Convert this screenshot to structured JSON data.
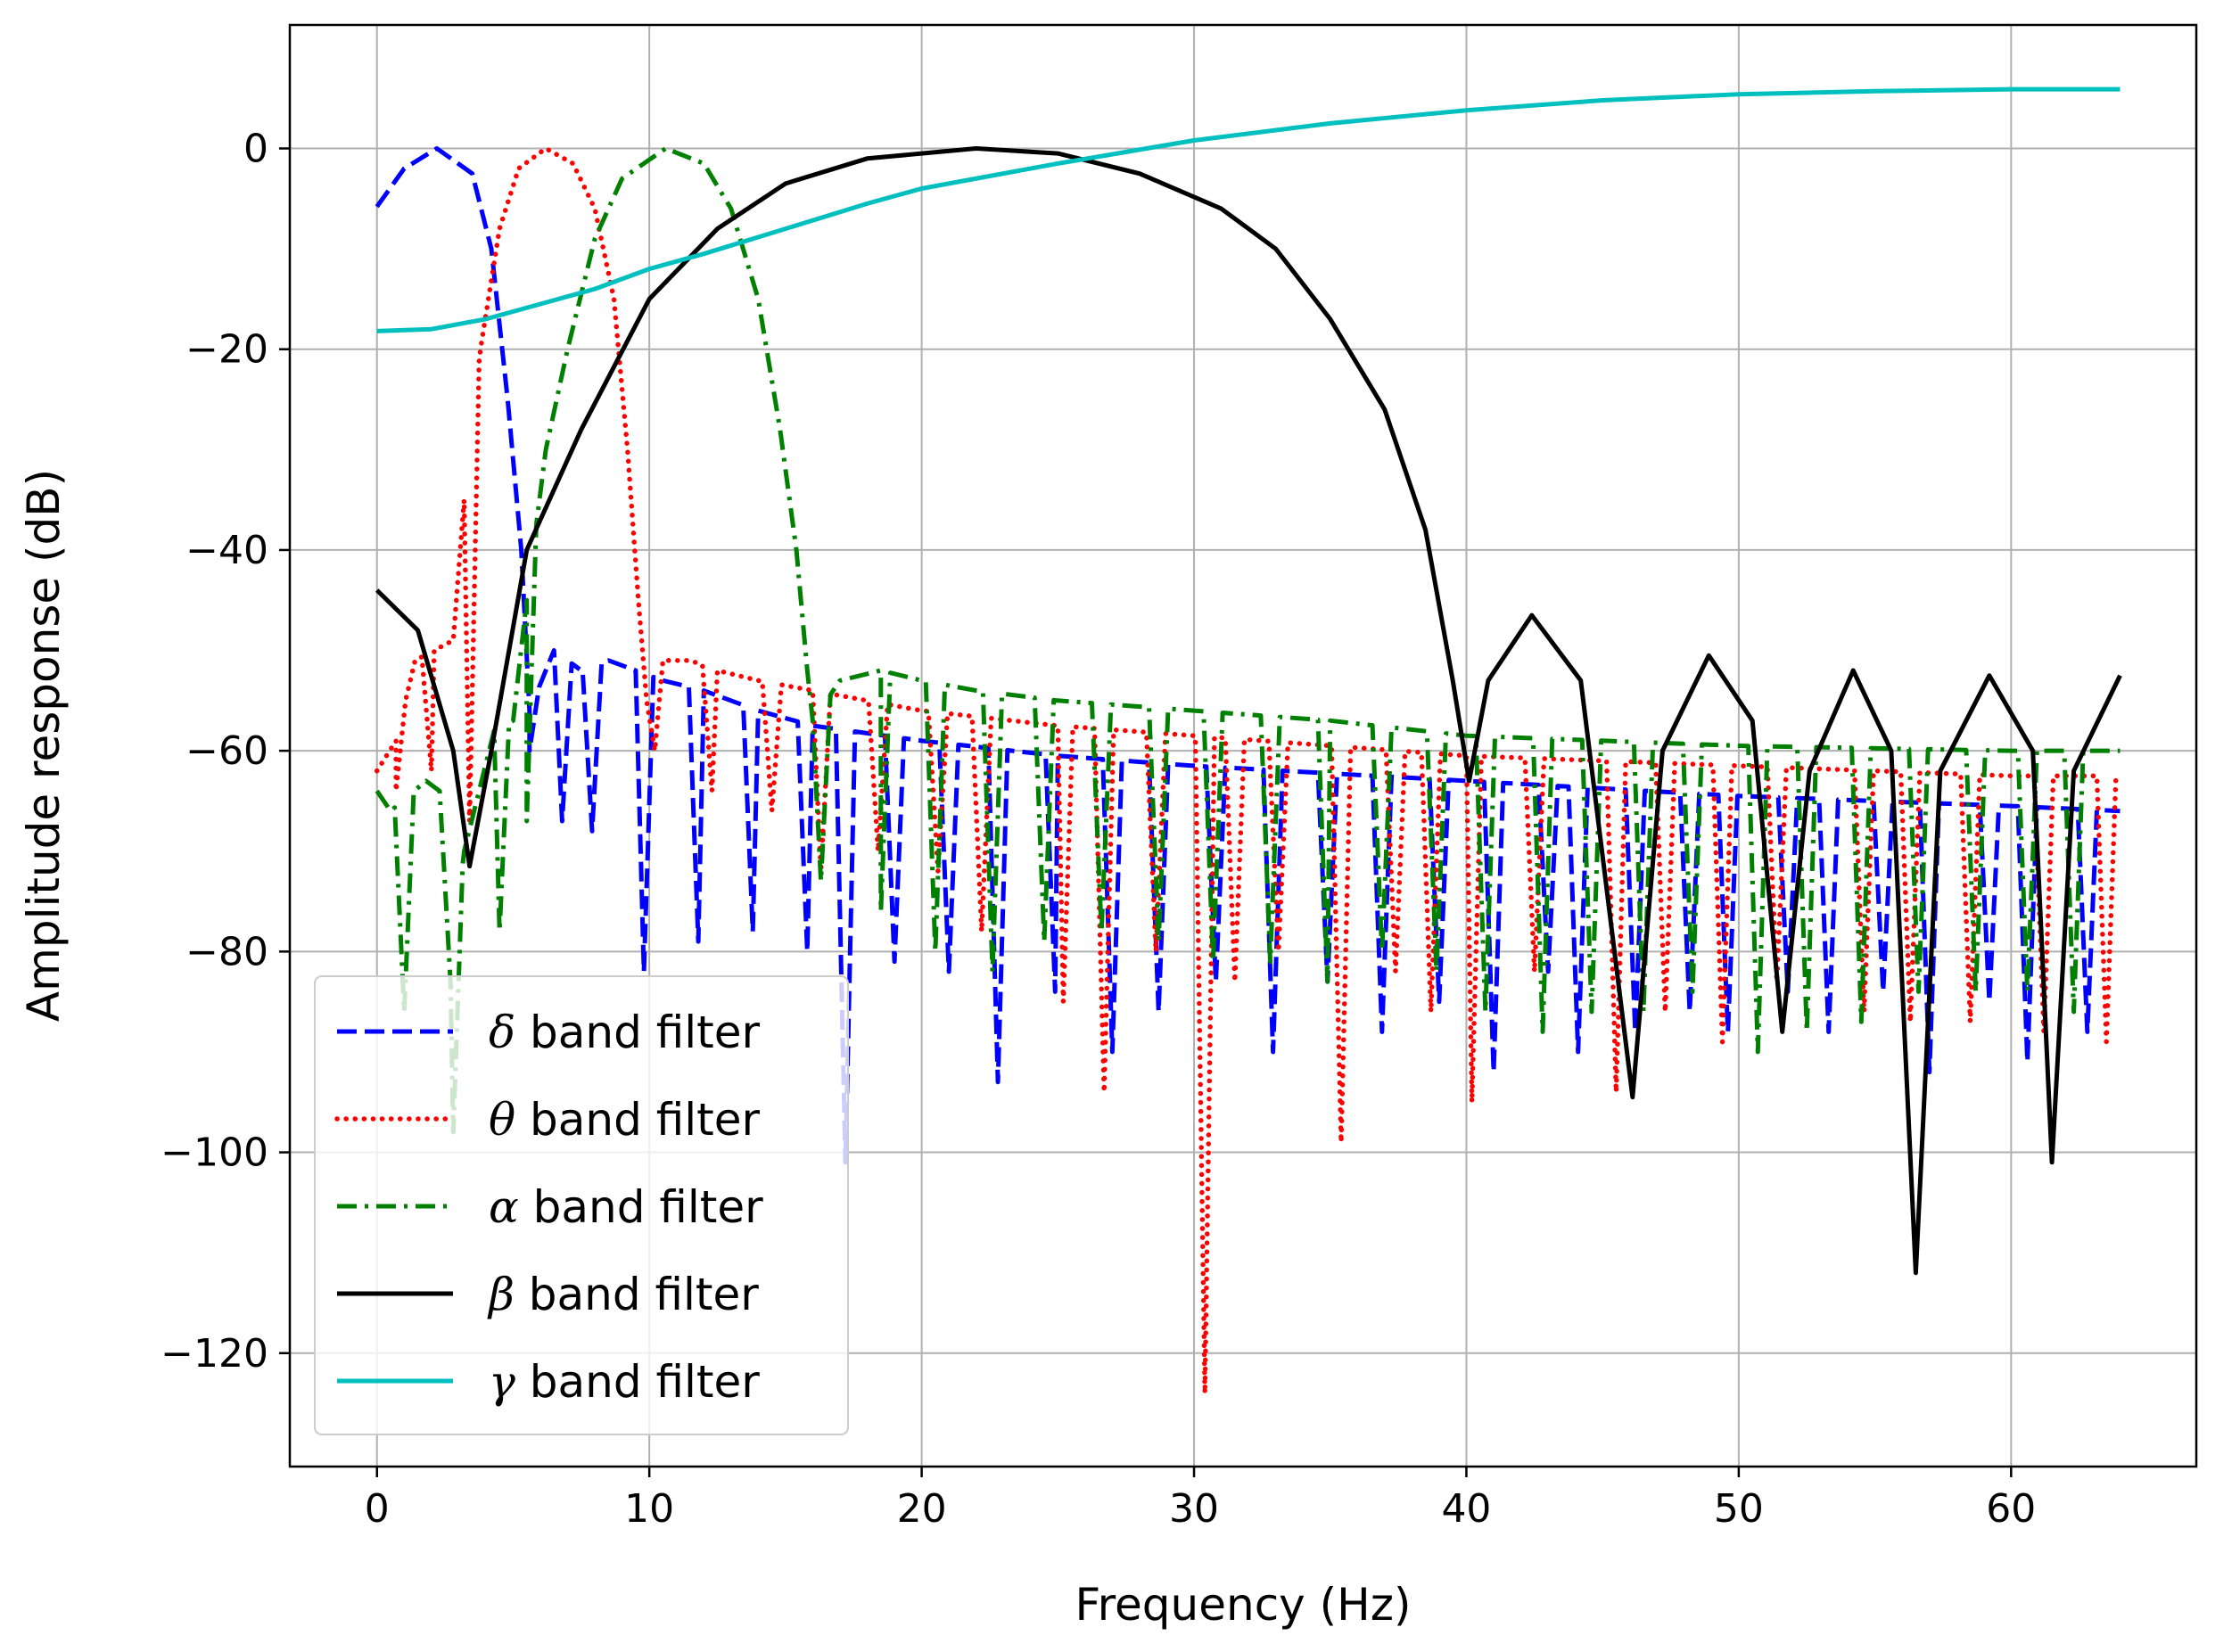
{
  "chart_data": {
    "type": "line",
    "title": "",
    "xlabel": "Frequency (Hz)",
    "ylabel": "Amplitude response (dB)",
    "xlim": [
      -3.2,
      66.8
    ],
    "ylim": [
      -131.3,
      12.3
    ],
    "xticks": [
      0,
      10,
      20,
      30,
      40,
      50,
      60
    ],
    "xtick_labels": [
      "0",
      "10",
      "20",
      "30",
      "40",
      "50",
      "60"
    ],
    "yticks": [
      0,
      -20,
      -40,
      -60,
      -80,
      -100,
      -120
    ],
    "ytick_labels": [
      "0",
      "−20",
      "−40",
      "−60",
      "−80",
      "−100",
      "−120"
    ],
    "grid": true,
    "legend_position": "lower-left",
    "series": [
      {
        "name": "band filter",
        "greek": "δ",
        "color": "#0000ff",
        "style": "dashed",
        "points": [
          [
            0,
            -5.8
          ],
          [
            1,
            -2.0
          ],
          [
            2.2,
            0
          ],
          [
            3.5,
            -2.5
          ],
          [
            4.2,
            -10
          ],
          [
            4.8,
            -25
          ],
          [
            5.3,
            -40
          ],
          [
            5.6,
            -56
          ],
          [
            6.5,
            -50
          ],
          [
            7.5,
            -52
          ],
          [
            8.5,
            -51
          ],
          [
            9.5,
            -52
          ],
          [
            10.5,
            -53
          ],
          [
            12,
            -54
          ],
          [
            14,
            -56
          ],
          [
            16,
            -57.5
          ],
          [
            20,
            -59
          ],
          [
            25,
            -60.5
          ],
          [
            30,
            -61.5
          ],
          [
            40,
            -63
          ],
          [
            50,
            -64.5
          ],
          [
            60,
            -65.5
          ],
          [
            64,
            -66
          ]
        ],
        "nulls": [
          [
            5.6,
            -60
          ],
          [
            6.8,
            -67
          ],
          [
            7.9,
            -68
          ],
          [
            9.8,
            -82
          ],
          [
            11.8,
            -79
          ],
          [
            13.8,
            -78
          ],
          [
            15.8,
            -80
          ],
          [
            17.2,
            -101
          ],
          [
            19.0,
            -81
          ],
          [
            21.0,
            -82
          ],
          [
            22.8,
            -93
          ],
          [
            24.9,
            -84
          ],
          [
            27.0,
            -90
          ],
          [
            28.7,
            -86
          ],
          [
            30.8,
            -83
          ],
          [
            32.9,
            -90
          ],
          [
            34.9,
            -83
          ],
          [
            36.9,
            -88
          ],
          [
            39.0,
            -85
          ],
          [
            41.0,
            -92
          ],
          [
            43.0,
            -82
          ],
          [
            44.1,
            -90
          ],
          [
            46.2,
            -88
          ],
          [
            48.2,
            -86
          ],
          [
            49.6,
            -88
          ],
          [
            51.8,
            -84
          ],
          [
            53.3,
            -88
          ],
          [
            55.3,
            -84
          ],
          [
            57.0,
            -92
          ],
          [
            59.2,
            -85
          ],
          [
            60.6,
            -91
          ],
          [
            62.8,
            -88
          ]
        ]
      },
      {
        "name": "band filter",
        "greek": "θ",
        "color": "#ff0000",
        "style": "dotted",
        "points": [
          [
            0,
            -62
          ],
          [
            0.7,
            -59
          ],
          [
            1.4,
            -51
          ],
          [
            2.1,
            -50
          ],
          [
            2.8,
            -49
          ],
          [
            3.2,
            -35
          ],
          [
            3.8,
            -20
          ],
          [
            4.5,
            -8
          ],
          [
            5.2,
            -2
          ],
          [
            6.2,
            0
          ],
          [
            7.2,
            -1.5
          ],
          [
            8.0,
            -6
          ],
          [
            8.7,
            -15
          ],
          [
            9.2,
            -30
          ],
          [
            9.6,
            -45
          ],
          [
            9.9,
            -55
          ],
          [
            10.5,
            -51
          ],
          [
            11.5,
            -51
          ],
          [
            12.5,
            -52
          ],
          [
            14,
            -53
          ],
          [
            16,
            -54
          ],
          [
            20,
            -56
          ],
          [
            25,
            -57.5
          ],
          [
            30,
            -58.5
          ],
          [
            40,
            -60.5
          ],
          [
            50,
            -61.5
          ],
          [
            60,
            -62.5
          ],
          [
            64,
            -62.5
          ]
        ],
        "nulls": [
          [
            0.7,
            -64
          ],
          [
            2.0,
            -62
          ],
          [
            3.4,
            -67
          ],
          [
            10.2,
            -60
          ],
          [
            12.3,
            -64
          ],
          [
            14.5,
            -66
          ],
          [
            16.3,
            -72
          ],
          [
            18.4,
            -70
          ],
          [
            20.6,
            -72
          ],
          [
            22.2,
            -78
          ],
          [
            25.2,
            -85
          ],
          [
            26.7,
            -94
          ],
          [
            28.6,
            -80
          ],
          [
            30.4,
            -124
          ],
          [
            31.5,
            -83
          ],
          [
            33.1,
            -80
          ],
          [
            35.4,
            -99
          ],
          [
            37.4,
            -82
          ],
          [
            38.7,
            -86
          ],
          [
            40.2,
            -95
          ],
          [
            42.5,
            -82
          ],
          [
            45.5,
            -94
          ],
          [
            47.3,
            -86
          ],
          [
            49.4,
            -89
          ],
          [
            51.4,
            -83
          ],
          [
            54.6,
            -86
          ],
          [
            56.3,
            -87
          ],
          [
            58.5,
            -87
          ],
          [
            61.2,
            -88
          ],
          [
            63.5,
            -89
          ]
        ]
      },
      {
        "name": "band filter",
        "greek": "α",
        "color": "#008000",
        "style": "dashdot",
        "points": [
          [
            0,
            -64
          ],
          [
            0.5,
            -66
          ],
          [
            1.8,
            -63
          ],
          [
            2.3,
            -64
          ],
          [
            2.7,
            -83
          ],
          [
            3.2,
            -70
          ],
          [
            4.3,
            -58
          ],
          [
            5.0,
            -57
          ],
          [
            5.5,
            -45
          ],
          [
            6.2,
            -30
          ],
          [
            7.0,
            -20
          ],
          [
            8.0,
            -9
          ],
          [
            9.0,
            -3
          ],
          [
            10.6,
            0
          ],
          [
            12.0,
            -1.5
          ],
          [
            13.0,
            -6
          ],
          [
            14.0,
            -15
          ],
          [
            14.8,
            -28
          ],
          [
            15.4,
            -40
          ],
          [
            15.8,
            -52
          ],
          [
            16.0,
            -57
          ],
          [
            17,
            -53
          ],
          [
            18.5,
            -52
          ],
          [
            20,
            -53
          ],
          [
            22,
            -54
          ],
          [
            25,
            -55
          ],
          [
            30,
            -56
          ],
          [
            35,
            -57
          ],
          [
            40,
            -58.5
          ],
          [
            50,
            -59.5
          ],
          [
            60,
            -60
          ],
          [
            64,
            -60
          ]
        ],
        "nulls": [
          [
            1.0,
            -86
          ],
          [
            2.8,
            -98
          ],
          [
            4.5,
            -78
          ],
          [
            5.5,
            -67
          ],
          [
            16.3,
            -73
          ],
          [
            18.5,
            -76
          ],
          [
            20.5,
            -80
          ],
          [
            22.6,
            -82
          ],
          [
            24.5,
            -79
          ],
          [
            26.6,
            -78
          ],
          [
            28.7,
            -79
          ],
          [
            30.7,
            -81
          ],
          [
            32.8,
            -81
          ],
          [
            34.9,
            -83
          ],
          [
            36.9,
            -80
          ],
          [
            38.9,
            -82
          ],
          [
            40.7,
            -86
          ],
          [
            42.8,
            -88
          ],
          [
            44.6,
            -86
          ],
          [
            46.5,
            -86
          ],
          [
            48.3,
            -84
          ],
          [
            50.7,
            -90
          ],
          [
            52.5,
            -88
          ],
          [
            54.5,
            -87
          ],
          [
            56.6,
            -84
          ],
          [
            58.7,
            -84
          ],
          [
            60.6,
            -84
          ],
          [
            62.3,
            -86
          ]
        ]
      },
      {
        "name": "band filter",
        "greek": "β",
        "color": "#000000",
        "style": "solid",
        "points": [
          [
            0,
            -44
          ],
          [
            1.5,
            -48
          ],
          [
            2.8,
            -60
          ],
          [
            3.4,
            -71.5
          ],
          [
            4.2,
            -60
          ],
          [
            5.5,
            -40
          ],
          [
            7.5,
            -28
          ],
          [
            10,
            -15
          ],
          [
            12.5,
            -8
          ],
          [
            15,
            -3.5
          ],
          [
            18,
            -1
          ],
          [
            22,
            0
          ],
          [
            25,
            -0.5
          ],
          [
            28,
            -2.5
          ],
          [
            31,
            -6
          ],
          [
            33,
            -10
          ],
          [
            35,
            -17
          ],
          [
            37,
            -26
          ],
          [
            38.5,
            -38
          ],
          [
            39.5,
            -53
          ],
          [
            40.1,
            -63
          ],
          [
            40.8,
            -53
          ],
          [
            42.4,
            -46.5
          ],
          [
            44.2,
            -53
          ],
          [
            46.1,
            -94.5
          ],
          [
            47.2,
            -60
          ],
          [
            48.9,
            -50.5
          ],
          [
            50.5,
            -57
          ],
          [
            51.6,
            -88
          ],
          [
            52.6,
            -62
          ],
          [
            54.2,
            -52
          ],
          [
            55.6,
            -60
          ],
          [
            56.5,
            -112
          ],
          [
            57.4,
            -62
          ],
          [
            59.2,
            -52.5
          ],
          [
            60.8,
            -60
          ],
          [
            61.5,
            -101
          ],
          [
            62.3,
            -62
          ],
          [
            64,
            -52.5
          ]
        ],
        "nulls": []
      },
      {
        "name": "band filter",
        "greek": "γ",
        "color": "#00bfbf",
        "style": "solid",
        "points": [
          [
            0,
            -18.2
          ],
          [
            2,
            -18
          ],
          [
            4,
            -17
          ],
          [
            6,
            -15.5
          ],
          [
            8,
            -14
          ],
          [
            10,
            -12
          ],
          [
            12,
            -10.5
          ],
          [
            15,
            -8
          ],
          [
            18,
            -5.5
          ],
          [
            20,
            -4
          ],
          [
            25,
            -1.5
          ],
          [
            30,
            0.8
          ],
          [
            35,
            2.5
          ],
          [
            40,
            3.8
          ],
          [
            45,
            4.8
          ],
          [
            50,
            5.4
          ],
          [
            55,
            5.7
          ],
          [
            60,
            5.9
          ],
          [
            64,
            5.9
          ]
        ],
        "nulls": []
      }
    ]
  }
}
